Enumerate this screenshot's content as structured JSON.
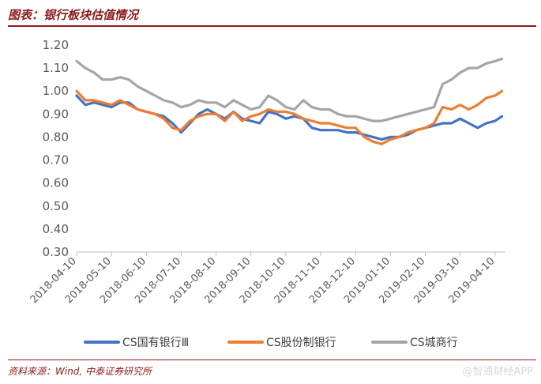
{
  "header": {
    "title": "图表：银行板块估值情况"
  },
  "footer": {
    "source": "资料来源：Wind, 中泰证券研究所",
    "watermark": "@智通财经APP"
  },
  "colors": {
    "accent": "#8b1a1a",
    "series1": "#4472c4",
    "series2": "#ed7d31",
    "series3": "#a5a5a5"
  },
  "chart_data": {
    "type": "line",
    "title": "图表：银行板块估值情况",
    "xlabel": "",
    "ylabel": "",
    "ylim": [
      0.3,
      1.2
    ],
    "y_ticks": [
      "0.30",
      "0.40",
      "0.50",
      "0.60",
      "0.70",
      "0.80",
      "0.90",
      "1.00",
      "1.10",
      "1.20"
    ],
    "x_ticks": [
      "2018-04-10",
      "2018-05-10",
      "2018-06-10",
      "2018-07-10",
      "2018-08-10",
      "2018-09-10",
      "2018-10-10",
      "2018-11-10",
      "2018-12-10",
      "2019-01-10",
      "2019-02-10",
      "2019-03-10",
      "2019-04-10"
    ],
    "x_range_months": [
      0,
      12.3
    ],
    "grid": false,
    "legend_position": "bottom",
    "series": [
      {
        "name": "CS国有银行Ⅲ",
        "x": [
          0,
          0.25,
          0.5,
          0.75,
          1.0,
          1.25,
          1.5,
          1.75,
          2.0,
          2.25,
          2.5,
          2.75,
          3.0,
          3.25,
          3.5,
          3.75,
          4.0,
          4.25,
          4.5,
          4.75,
          5.0,
          5.25,
          5.5,
          5.75,
          6.0,
          6.25,
          6.5,
          6.75,
          7.0,
          7.25,
          7.5,
          7.75,
          8.0,
          8.25,
          8.5,
          8.75,
          9.0,
          9.25,
          9.5,
          9.75,
          10.0,
          10.25,
          10.5,
          10.75,
          11.0,
          11.25,
          11.5,
          11.75,
          12.0,
          12.2
        ],
        "values": [
          0.98,
          0.94,
          0.95,
          0.94,
          0.93,
          0.95,
          0.95,
          0.92,
          0.91,
          0.9,
          0.89,
          0.86,
          0.82,
          0.86,
          0.9,
          0.92,
          0.9,
          0.88,
          0.91,
          0.88,
          0.87,
          0.86,
          0.91,
          0.9,
          0.88,
          0.89,
          0.88,
          0.84,
          0.83,
          0.83,
          0.83,
          0.82,
          0.82,
          0.81,
          0.8,
          0.79,
          0.8,
          0.8,
          0.81,
          0.83,
          0.84,
          0.85,
          0.86,
          0.86,
          0.88,
          0.86,
          0.84,
          0.86,
          0.87,
          0.89
        ]
      },
      {
        "name": "CS股份制银行",
        "x": [
          0,
          0.25,
          0.5,
          0.75,
          1.0,
          1.25,
          1.5,
          1.75,
          2.0,
          2.25,
          2.5,
          2.75,
          3.0,
          3.25,
          3.5,
          3.75,
          4.0,
          4.25,
          4.5,
          4.75,
          5.0,
          5.25,
          5.5,
          5.75,
          6.0,
          6.25,
          6.5,
          6.75,
          7.0,
          7.25,
          7.5,
          7.75,
          8.0,
          8.25,
          8.5,
          8.75,
          9.0,
          9.25,
          9.5,
          9.75,
          10.0,
          10.25,
          10.5,
          10.75,
          11.0,
          11.25,
          11.5,
          11.75,
          12.0,
          12.2
        ],
        "values": [
          1.0,
          0.96,
          0.96,
          0.95,
          0.94,
          0.96,
          0.94,
          0.92,
          0.91,
          0.9,
          0.88,
          0.84,
          0.83,
          0.87,
          0.89,
          0.9,
          0.9,
          0.87,
          0.91,
          0.87,
          0.89,
          0.9,
          0.92,
          0.91,
          0.91,
          0.9,
          0.88,
          0.87,
          0.86,
          0.86,
          0.85,
          0.84,
          0.84,
          0.8,
          0.78,
          0.77,
          0.79,
          0.8,
          0.82,
          0.83,
          0.84,
          0.86,
          0.93,
          0.92,
          0.94,
          0.92,
          0.94,
          0.97,
          0.98,
          1.0
        ]
      },
      {
        "name": "CS城商行",
        "x": [
          0,
          0.25,
          0.5,
          0.75,
          1.0,
          1.25,
          1.5,
          1.75,
          2.0,
          2.25,
          2.5,
          2.75,
          3.0,
          3.25,
          3.5,
          3.75,
          4.0,
          4.25,
          4.5,
          4.75,
          5.0,
          5.25,
          5.5,
          5.75,
          6.0,
          6.25,
          6.5,
          6.75,
          7.0,
          7.25,
          7.5,
          7.75,
          8.0,
          8.25,
          8.5,
          8.75,
          9.0,
          9.25,
          9.5,
          9.75,
          10.0,
          10.25,
          10.5,
          10.75,
          11.0,
          11.25,
          11.5,
          11.75,
          12.0,
          12.2
        ],
        "values": [
          1.13,
          1.1,
          1.08,
          1.05,
          1.05,
          1.06,
          1.05,
          1.02,
          1.0,
          0.98,
          0.96,
          0.95,
          0.93,
          0.94,
          0.96,
          0.95,
          0.95,
          0.93,
          0.96,
          0.94,
          0.92,
          0.93,
          0.98,
          0.96,
          0.93,
          0.92,
          0.96,
          0.93,
          0.92,
          0.92,
          0.9,
          0.89,
          0.89,
          0.88,
          0.87,
          0.87,
          0.88,
          0.89,
          0.9,
          0.91,
          0.92,
          0.93,
          1.03,
          1.05,
          1.08,
          1.1,
          1.1,
          1.12,
          1.13,
          1.14
        ]
      }
    ]
  }
}
